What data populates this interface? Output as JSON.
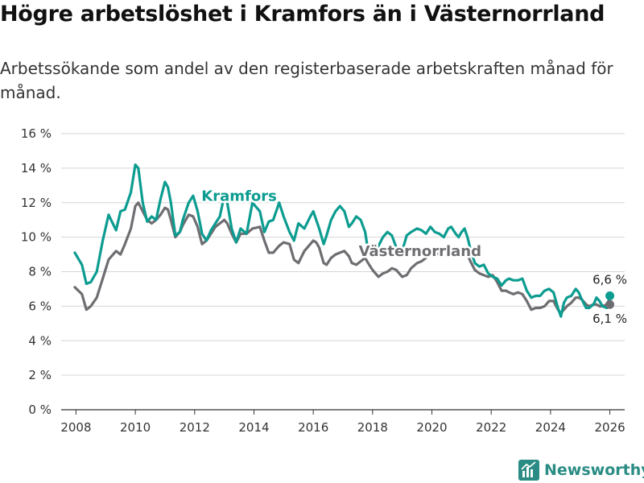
{
  "header": {
    "title": "Högre arbetslöshet i Kramfors än i Västernorrland",
    "subtitle": "Arbetssökande som andel av den registerbaserade arbetskraften månad för månad."
  },
  "brand": {
    "name": "Newsworthy",
    "icon": "bar-chart-logo-icon"
  },
  "colors": {
    "kramfors": "#0c9c90",
    "vasternorrland": "#6e6e72",
    "grid": "#d6d6d6",
    "axis": "#333333"
  },
  "chart_data": {
    "type": "line",
    "title": "Högre arbetslöshet i Kramfors än i Västernorrland",
    "xlabel": "",
    "ylabel": "",
    "ylim": [
      0,
      16
    ],
    "xlim": [
      2007.5,
      2026.5
    ],
    "grid": true,
    "y_ticks": [
      0,
      2,
      4,
      6,
      8,
      10,
      12,
      14,
      16
    ],
    "y_tick_labels": [
      "0 %",
      "2 %",
      "4 %",
      "6 %",
      "8 %",
      "10 %",
      "12 %",
      "14 %",
      "16 %"
    ],
    "x_ticks": [
      2008,
      2010,
      2012,
      2014,
      2016,
      2018,
      2020,
      2022,
      2024,
      2026
    ],
    "x_tick_labels": [
      "2008",
      "2010",
      "2012",
      "2014",
      "2016",
      "2018",
      "2020",
      "2022",
      "2024",
      "2026"
    ],
    "series": [
      {
        "name": "Kramfors",
        "label": "Kramfors",
        "color": "#0c9c90",
        "end_label": "6,6 %",
        "x": [
          2007.96,
          2008.2,
          2008.35,
          2008.5,
          2008.7,
          2008.9,
          2009.1,
          2009.35,
          2009.5,
          2009.65,
          2009.85,
          2010.0,
          2010.1,
          2010.25,
          2010.4,
          2010.55,
          2010.7,
          2010.85,
          2011.0,
          2011.1,
          2011.2,
          2011.35,
          2011.5,
          2011.6,
          2011.8,
          2011.95,
          2012.1,
          2012.25,
          2012.4,
          2012.55,
          2012.7,
          2012.85,
          2013.0,
          2013.1,
          2013.25,
          2013.4,
          2013.55,
          2013.75,
          2013.95,
          2014.2,
          2014.35,
          2014.5,
          2014.65,
          2014.75,
          2014.85,
          2015.0,
          2015.2,
          2015.35,
          2015.5,
          2015.7,
          2015.9,
          2016.0,
          2016.1,
          2016.2,
          2016.35,
          2016.45,
          2016.6,
          2016.75,
          2016.9,
          2017.05,
          2017.2,
          2017.3,
          2017.45,
          2017.6,
          2017.75,
          2017.85,
          2018.0,
          2018.2,
          2018.35,
          2018.5,
          2018.65,
          2018.8,
          2019.0,
          2019.15,
          2019.3,
          2019.5,
          2019.65,
          2019.8,
          2019.95,
          2020.1,
          2020.25,
          2020.4,
          2020.55,
          2020.65,
          2020.8,
          2020.9,
          2021.0,
          2021.1,
          2021.2,
          2021.3,
          2021.45,
          2021.6,
          2021.75,
          2021.9,
          2022.05,
          2022.2,
          2022.35,
          2022.5,
          2022.6,
          2022.75,
          2022.9,
          2023.05,
          2023.2,
          2023.35,
          2023.5,
          2023.65,
          2023.8,
          2023.95,
          2024.1,
          2024.25,
          2024.35,
          2024.45,
          2024.55,
          2024.7,
          2024.85,
          2024.95,
          2025.05,
          2025.2,
          2025.3,
          2025.45,
          2025.55,
          2025.65,
          2025.75,
          2025.9,
          2026.0
        ],
        "values": [
          9.1,
          8.4,
          7.3,
          7.4,
          8.0,
          9.8,
          11.3,
          10.4,
          11.5,
          11.6,
          12.6,
          14.2,
          14.0,
          12.0,
          10.9,
          11.2,
          11.0,
          12.2,
          13.2,
          12.9,
          12.0,
          10.1,
          10.3,
          11.0,
          12.0,
          12.4,
          11.5,
          10.2,
          9.8,
          10.4,
          10.8,
          11.2,
          12.4,
          12.0,
          10.5,
          9.7,
          10.5,
          10.2,
          12.0,
          11.5,
          10.3,
          10.9,
          11.0,
          11.5,
          12.0,
          11.2,
          10.3,
          9.8,
          10.8,
          10.5,
          11.2,
          11.5,
          11.0,
          10.5,
          9.6,
          10.1,
          11.0,
          11.5,
          11.8,
          11.5,
          10.6,
          10.8,
          11.2,
          11.0,
          10.3,
          9.2,
          8.9,
          9.5,
          10.0,
          10.3,
          10.1,
          9.4,
          9.2,
          10.1,
          10.3,
          10.5,
          10.4,
          10.2,
          10.6,
          10.3,
          10.2,
          10.0,
          10.5,
          10.6,
          10.2,
          10.0,
          10.3,
          10.5,
          10.0,
          9.3,
          8.5,
          8.3,
          8.4,
          7.9,
          7.7,
          7.6,
          7.2,
          7.5,
          7.6,
          7.5,
          7.5,
          7.6,
          6.9,
          6.5,
          6.6,
          6.6,
          6.9,
          7.0,
          6.8,
          5.9,
          5.4,
          6.2,
          6.5,
          6.6,
          7.0,
          6.8,
          6.4,
          5.9,
          5.9,
          6.1,
          6.5,
          6.3,
          6.0,
          5.9,
          6.6
        ]
      },
      {
        "name": "Västernorrland",
        "label": "Västernorrland",
        "color": "#6e6e72",
        "end_label": "6,1 %",
        "x": [
          2007.96,
          2008.2,
          2008.35,
          2008.5,
          2008.7,
          2008.9,
          2009.1,
          2009.35,
          2009.5,
          2009.65,
          2009.85,
          2010.0,
          2010.1,
          2010.25,
          2010.4,
          2010.55,
          2010.7,
          2010.85,
          2011.0,
          2011.1,
          2011.2,
          2011.35,
          2011.5,
          2011.6,
          2011.8,
          2011.95,
          2012.1,
          2012.25,
          2012.4,
          2012.55,
          2012.7,
          2012.85,
          2013.0,
          2013.1,
          2013.25,
          2013.4,
          2013.55,
          2013.75,
          2013.95,
          2014.2,
          2014.35,
          2014.5,
          2014.65,
          2014.75,
          2014.85,
          2015.0,
          2015.2,
          2015.35,
          2015.5,
          2015.7,
          2015.9,
          2016.0,
          2016.1,
          2016.2,
          2016.35,
          2016.45,
          2016.6,
          2016.75,
          2016.9,
          2017.05,
          2017.2,
          2017.3,
          2017.45,
          2017.6,
          2017.75,
          2017.85,
          2018.0,
          2018.2,
          2018.35,
          2018.5,
          2018.65,
          2018.8,
          2019.0,
          2019.15,
          2019.3,
          2019.5,
          2019.65,
          2019.8,
          2019.95,
          2020.1,
          2020.25,
          2020.4,
          2020.55,
          2020.65,
          2020.8,
          2020.9,
          2021.0,
          2021.1,
          2021.2,
          2021.3,
          2021.45,
          2021.6,
          2021.75,
          2021.9,
          2022.05,
          2022.2,
          2022.35,
          2022.5,
          2022.6,
          2022.75,
          2022.9,
          2023.05,
          2023.2,
          2023.35,
          2023.5,
          2023.65,
          2023.8,
          2023.95,
          2024.1,
          2024.25,
          2024.35,
          2024.45,
          2024.55,
          2024.7,
          2024.85,
          2024.95,
          2025.05,
          2025.2,
          2025.3,
          2025.45,
          2025.55,
          2025.65,
          2025.75,
          2025.9,
          2026.0
        ],
        "values": [
          7.1,
          6.7,
          5.8,
          6.0,
          6.5,
          7.6,
          8.7,
          9.2,
          9.0,
          9.6,
          10.5,
          11.8,
          12.0,
          11.5,
          11.0,
          10.8,
          11.0,
          11.3,
          11.7,
          11.6,
          11.0,
          10.0,
          10.3,
          10.7,
          11.3,
          11.2,
          10.6,
          9.6,
          9.8,
          10.2,
          10.6,
          10.8,
          11.0,
          10.8,
          10.2,
          9.7,
          10.2,
          10.2,
          10.5,
          10.6,
          9.8,
          9.1,
          9.1,
          9.3,
          9.5,
          9.7,
          9.6,
          8.7,
          8.5,
          9.2,
          9.6,
          9.8,
          9.7,
          9.4,
          8.5,
          8.4,
          8.8,
          9.0,
          9.1,
          9.2,
          8.9,
          8.5,
          8.4,
          8.6,
          8.8,
          8.5,
          8.1,
          7.7,
          7.9,
          8.0,
          8.2,
          8.1,
          7.7,
          7.8,
          8.2,
          8.5,
          8.6,
          8.8,
          9.1,
          9.1,
          9.0,
          9.2,
          9.3,
          9.4,
          9.2,
          9.0,
          9.2,
          9.1,
          9.0,
          8.6,
          8.1,
          7.9,
          7.8,
          7.7,
          7.8,
          7.4,
          6.9,
          6.9,
          6.8,
          6.7,
          6.8,
          6.7,
          6.3,
          5.8,
          5.9,
          5.9,
          6.0,
          6.3,
          6.3,
          5.8,
          5.6,
          5.8,
          6.0,
          6.2,
          6.5,
          6.5,
          6.4,
          6.1,
          6.0,
          6.1,
          6.1,
          6.0,
          6.0,
          6.1,
          6.1
        ]
      }
    ]
  }
}
